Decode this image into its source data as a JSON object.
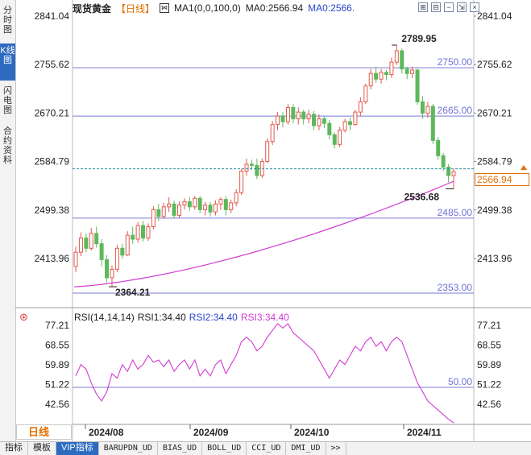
{
  "sidebar": {
    "tabs": [
      {
        "label": "分时图",
        "active": false
      },
      {
        "label": "K线图",
        "active": true
      },
      {
        "label": "闪电图",
        "active": false
      },
      {
        "label": "合约资料",
        "active": false
      }
    ]
  },
  "header": {
    "title": "现货黄金",
    "period": "【日线】",
    "ma1": "MA1(0,0,100,0)",
    "ma0_a": "MA0:2566.94",
    "ma0_b": "MA0:2566."
  },
  "tool_icons": [
    "grid-icon",
    "arrange-icon",
    "minus-icon",
    "export-icon",
    "close-icon"
  ],
  "price_axis": {
    "ticks": [
      "2841.04",
      "2755.62",
      "2670.21",
      "2584.79",
      "2499.38",
      "2413.96"
    ],
    "left_ticks": [
      "2841.04",
      "2755.62",
      "2670.21",
      "2584.79",
      "2499.38",
      "2413.96"
    ],
    "last_price": "2566.94"
  },
  "levels": [
    "2750.00",
    "2665.00",
    "2485.00",
    "2353.00"
  ],
  "annotations": {
    "high": "2789.95",
    "low_recent": "2536.68",
    "low": "2364.21"
  },
  "rsi": {
    "label": "RSI(14,14,14)",
    "rsi1": "RSI1:34.40",
    "rsi2": "RSI2:34.40",
    "rsi3": "RSI3:34.40",
    "ticks": [
      "77.21",
      "68.55",
      "59.89",
      "51.22",
      "42.56"
    ],
    "left_ticks": [
      "77.21",
      "68.55",
      "59.89",
      "51.22",
      "42.56"
    ],
    "level": "50.00"
  },
  "time_axis": {
    "labels": [
      "2024/08",
      "2024/09",
      "2024/10",
      "2024/11"
    ]
  },
  "bottom": {
    "period": "日线"
  },
  "tabs": [
    "指标",
    "模板",
    "VIP指标",
    "BARUPDN_UD",
    "BIAS_UD",
    "BOLL_UD",
    "CCI_UD",
    "DMI_UD",
    ">>"
  ],
  "colors": {
    "up": "#e05a4a",
    "down": "#5cb85c",
    "ma": "#d23bd2",
    "level": "#7070d8",
    "accent": "#e07000"
  },
  "chart_data": {
    "type": "candlestick",
    "candles": [
      [
        2400,
        2425,
        2390,
        2435
      ],
      [
        2425,
        2450,
        2418,
        2460
      ],
      [
        2450,
        2432,
        2425,
        2458
      ],
      [
        2432,
        2458,
        2428,
        2468
      ],
      [
        2458,
        2440,
        2433,
        2470
      ],
      [
        2440,
        2412,
        2400,
        2448
      ],
      [
        2412,
        2380,
        2372,
        2420
      ],
      [
        2380,
        2395,
        2364,
        2402
      ],
      [
        2395,
        2432,
        2390,
        2438
      ],
      [
        2432,
        2420,
        2414,
        2440
      ],
      [
        2420,
        2455,
        2418,
        2462
      ],
      [
        2455,
        2448,
        2440,
        2470
      ],
      [
        2448,
        2472,
        2442,
        2478
      ],
      [
        2472,
        2450,
        2444,
        2480
      ],
      [
        2450,
        2470,
        2445,
        2476
      ],
      [
        2470,
        2500,
        2465,
        2506
      ],
      [
        2500,
        2488,
        2480,
        2510
      ],
      [
        2488,
        2505,
        2484,
        2512
      ],
      [
        2505,
        2510,
        2496,
        2522
      ],
      [
        2510,
        2490,
        2484,
        2516
      ],
      [
        2490,
        2508,
        2486,
        2514
      ],
      [
        2508,
        2514,
        2500,
        2520
      ],
      [
        2514,
        2505,
        2498,
        2522
      ],
      [
        2505,
        2520,
        2500,
        2524
      ],
      [
        2520,
        2500,
        2494,
        2524
      ],
      [
        2500,
        2508,
        2490,
        2514
      ],
      [
        2508,
        2496,
        2488,
        2514
      ],
      [
        2496,
        2510,
        2490,
        2516
      ],
      [
        2510,
        2518,
        2500,
        2522
      ],
      [
        2518,
        2500,
        2490,
        2524
      ],
      [
        2500,
        2512,
        2494,
        2518
      ],
      [
        2512,
        2530,
        2506,
        2536
      ],
      [
        2530,
        2568,
        2526,
        2572
      ],
      [
        2568,
        2580,
        2560,
        2590
      ],
      [
        2580,
        2578,
        2570,
        2588
      ],
      [
        2578,
        2560,
        2554,
        2590
      ],
      [
        2560,
        2585,
        2556,
        2590
      ],
      [
        2585,
        2620,
        2582,
        2626
      ],
      [
        2620,
        2650,
        2614,
        2656
      ],
      [
        2650,
        2665,
        2640,
        2672
      ],
      [
        2665,
        2655,
        2645,
        2672
      ],
      [
        2655,
        2680,
        2650,
        2686
      ],
      [
        2680,
        2660,
        2652,
        2686
      ],
      [
        2660,
        2672,
        2650,
        2680
      ],
      [
        2672,
        2660,
        2650,
        2676
      ],
      [
        2660,
        2668,
        2652,
        2676
      ],
      [
        2668,
        2648,
        2640,
        2674
      ],
      [
        2648,
        2660,
        2640,
        2668
      ],
      [
        2660,
        2652,
        2644,
        2664
      ],
      [
        2652,
        2632,
        2624,
        2658
      ],
      [
        2632,
        2615,
        2608,
        2636
      ],
      [
        2615,
        2640,
        2610,
        2646
      ],
      [
        2640,
        2655,
        2636,
        2660
      ],
      [
        2655,
        2650,
        2640,
        2662
      ],
      [
        2650,
        2672,
        2648,
        2676
      ],
      [
        2672,
        2690,
        2665,
        2698
      ],
      [
        2690,
        2718,
        2686,
        2722
      ],
      [
        2718,
        2740,
        2712,
        2748
      ],
      [
        2740,
        2730,
        2724,
        2752
      ],
      [
        2730,
        2742,
        2722,
        2748
      ],
      [
        2742,
        2738,
        2728,
        2746
      ],
      [
        2738,
        2760,
        2732,
        2768
      ],
      [
        2760,
        2780,
        2755,
        2789.95
      ],
      [
        2780,
        2748,
        2740,
        2784
      ],
      [
        2748,
        2740,
        2730,
        2752
      ],
      [
        2740,
        2746,
        2732,
        2752
      ],
      [
        2746,
        2690,
        2685,
        2748
      ],
      [
        2690,
        2670,
        2660,
        2700
      ],
      [
        2670,
        2682,
        2662,
        2690
      ],
      [
        2682,
        2622,
        2616,
        2686
      ],
      [
        2622,
        2595,
        2588,
        2628
      ],
      [
        2595,
        2575,
        2568,
        2600
      ],
      [
        2575,
        2560,
        2548,
        2580
      ],
      [
        2560,
        2566.94,
        2536.68,
        2572
      ]
    ],
    "ma_line_start": 2364,
    "ma_line_end": 2550,
    "rsi_values": [
      55,
      60,
      58,
      52,
      47,
      44,
      48,
      56,
      54,
      60,
      57,
      62,
      58,
      60,
      64,
      61,
      62,
      59,
      62,
      57,
      60,
      62,
      58,
      62,
      55,
      58,
      55,
      60,
      62,
      56,
      60,
      64,
      70,
      72,
      70,
      66,
      68,
      72,
      75,
      78,
      76,
      78,
      74,
      72,
      70,
      68,
      66,
      62,
      58,
      54,
      58,
      62,
      60,
      64,
      68,
      66,
      70,
      72,
      68,
      70,
      66,
      70,
      72,
      70,
      64,
      58,
      52,
      48,
      44,
      42,
      40,
      38,
      36,
      34.4
    ],
    "price_range": [
      2340,
      2841.04
    ],
    "rsi_range": [
      38,
      80
    ],
    "levels": [
      2750,
      2665,
      2485,
      2353
    ],
    "rsi_level": 50
  }
}
